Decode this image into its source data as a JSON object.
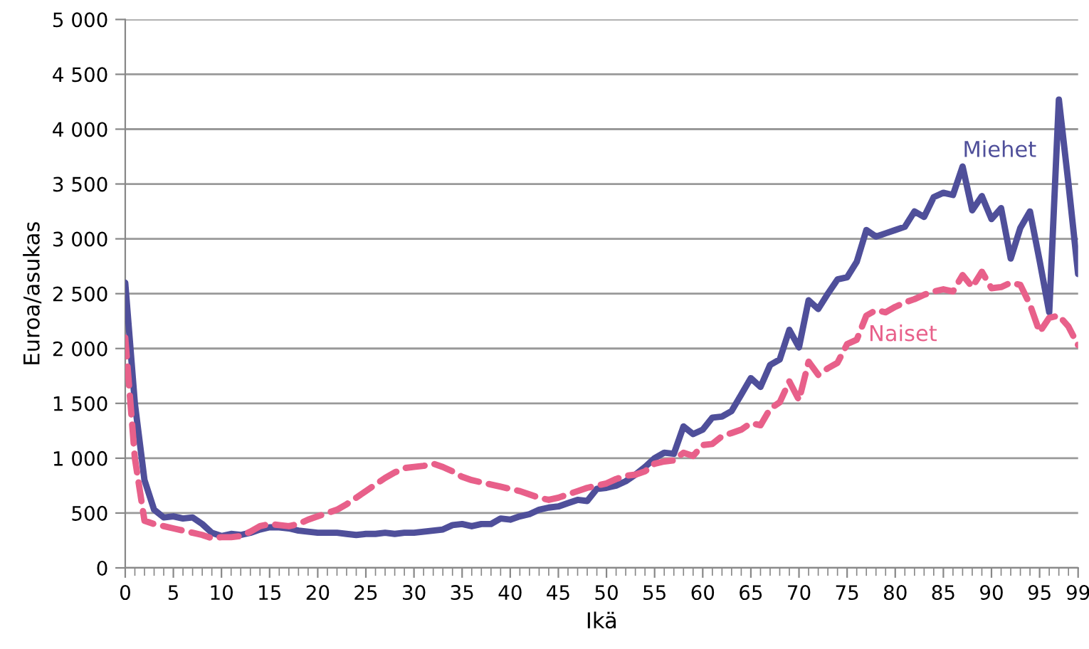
{
  "chart_data": {
    "type": "line",
    "xlabel": "Ikä",
    "ylabel": "Euroa/asukas",
    "x": [
      0,
      1,
      2,
      3,
      4,
      5,
      6,
      7,
      8,
      9,
      10,
      11,
      12,
      13,
      14,
      15,
      16,
      17,
      18,
      19,
      20,
      21,
      22,
      23,
      24,
      25,
      26,
      27,
      28,
      29,
      30,
      31,
      32,
      33,
      34,
      35,
      36,
      37,
      38,
      39,
      40,
      41,
      42,
      43,
      44,
      45,
      46,
      47,
      48,
      49,
      50,
      51,
      52,
      53,
      54,
      55,
      56,
      57,
      58,
      59,
      60,
      61,
      62,
      63,
      64,
      65,
      66,
      67,
      68,
      69,
      70,
      71,
      72,
      73,
      74,
      75,
      76,
      77,
      78,
      79,
      80,
      81,
      82,
      83,
      84,
      85,
      86,
      87,
      88,
      89,
      90,
      91,
      92,
      93,
      94,
      95,
      96,
      97,
      98,
      99
    ],
    "series": [
      {
        "name": "Miehet",
        "color": "#4f4f9a",
        "line_style": "solid",
        "values": [
          2600,
          1500,
          800,
          530,
          460,
          470,
          450,
          460,
          400,
          320,
          290,
          310,
          300,
          320,
          350,
          370,
          370,
          360,
          340,
          330,
          320,
          320,
          320,
          310,
          300,
          310,
          310,
          320,
          310,
          320,
          320,
          330,
          340,
          350,
          390,
          400,
          380,
          400,
          400,
          450,
          440,
          470,
          490,
          530,
          550,
          560,
          590,
          620,
          610,
          720,
          730,
          750,
          790,
          850,
          920,
          1000,
          1050,
          1040,
          1290,
          1220,
          1260,
          1370,
          1380,
          1430,
          1580,
          1730,
          1650,
          1850,
          1900,
          2170,
          2010,
          2440,
          2360,
          2500,
          2630,
          2650,
          2790,
          3080,
          3020,
          3050,
          3080,
          3110,
          3250,
          3200,
          3380,
          3420,
          3400,
          3660,
          3260,
          3390,
          3180,
          3280,
          2820,
          3100,
          3250,
          2800,
          2330,
          4270,
          3500,
          2680
        ]
      },
      {
        "name": "Naiset",
        "color": "#e8608a",
        "line_style": "dashed",
        "values": [
          2100,
          1000,
          430,
          400,
          380,
          360,
          340,
          320,
          300,
          270,
          280,
          280,
          290,
          330,
          380,
          400,
          390,
          380,
          400,
          440,
          470,
          500,
          530,
          580,
          640,
          700,
          760,
          820,
          870,
          910,
          920,
          930,
          950,
          920,
          880,
          830,
          800,
          780,
          760,
          740,
          720,
          700,
          670,
          640,
          620,
          640,
          670,
          700,
          730,
          750,
          770,
          810,
          840,
          850,
          880,
          950,
          970,
          980,
          1050,
          1020,
          1120,
          1130,
          1200,
          1230,
          1260,
          1320,
          1300,
          1450,
          1510,
          1700,
          1530,
          1880,
          1760,
          1820,
          1870,
          2040,
          2080,
          2300,
          2350,
          2330,
          2380,
          2420,
          2450,
          2490,
          2520,
          2540,
          2520,
          2670,
          2560,
          2700,
          2550,
          2560,
          2600,
          2580,
          2400,
          2150,
          2280,
          2300,
          2200,
          2030
        ]
      }
    ],
    "xlim": [
      0,
      99
    ],
    "xticks": [
      0,
      5,
      10,
      15,
      20,
      25,
      30,
      35,
      40,
      45,
      50,
      55,
      60,
      65,
      70,
      75,
      80,
      85,
      90,
      95,
      99
    ],
    "ylim": [
      0,
      5000
    ],
    "yticks": [
      0,
      500,
      {
        "value": 1000,
        "label": "1 000"
      },
      {
        "value": 1500,
        "label": "1 500"
      },
      {
        "value": 2000,
        "label": "2 000"
      },
      {
        "value": 2500,
        "label": "2 500"
      },
      {
        "value": 3000,
        "label": "3 000"
      },
      {
        "value": 3500,
        "label": "3 500"
      },
      {
        "value": 4000,
        "label": "4 000"
      },
      {
        "value": 4500,
        "label": "4 500"
      },
      {
        "value": 5000,
        "label": "5 000"
      }
    ],
    "grid": "y",
    "legend": false,
    "marker": "none"
  }
}
